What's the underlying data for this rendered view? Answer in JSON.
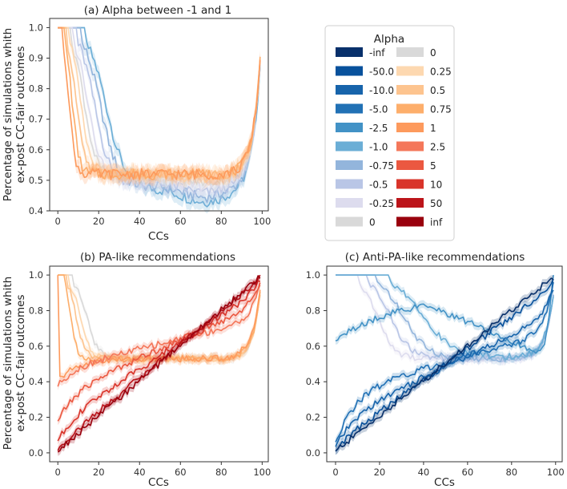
{
  "legend": {
    "title": "Alpha",
    "col1": [
      {
        "label": "-inf",
        "color": "#08306b"
      },
      {
        "label": "-50.0",
        "color": "#08519c"
      },
      {
        "label": "-10.0",
        "color": "#1764ab"
      },
      {
        "label": "-5.0",
        "color": "#2171b5"
      },
      {
        "label": "-2.5",
        "color": "#4292c6"
      },
      {
        "label": "-1.0",
        "color": "#6baed6"
      },
      {
        "label": "-0.75",
        "color": "#93b5dc"
      },
      {
        "label": "-0.5",
        "color": "#b9c6e6"
      },
      {
        "label": "-0.25",
        "color": "#dddcee"
      },
      {
        "label": "0",
        "color": "#d9d9d9"
      }
    ],
    "col2": [
      {
        "label": "0",
        "color": "#d9d9d9"
      },
      {
        "label": "0.25",
        "color": "#fdd8b0"
      },
      {
        "label": "0.5",
        "color": "#fdc48f"
      },
      {
        "label": "0.75",
        "color": "#fdae6b"
      },
      {
        "label": "1",
        "color": "#fd9a5d"
      },
      {
        "label": "2.5",
        "color": "#f4775a"
      },
      {
        "label": "5",
        "color": "#eb5840"
      },
      {
        "label": "10",
        "color": "#d9342a"
      },
      {
        "label": "50",
        "color": "#bc141a"
      },
      {
        "label": "inf",
        "color": "#99000d"
      }
    ]
  },
  "chart_data": [
    {
      "id": "a",
      "type": "line",
      "title": "(a) Alpha between -1 and 1",
      "xlabel": "CCs",
      "ylabel": "Percentage of simulations whith\nex-post CC-fair outcomes",
      "xlim": [
        -4,
        103
      ],
      "ylim": [
        0.4,
        1.03
      ],
      "xticks": [
        "0",
        "20",
        "40",
        "60",
        "80",
        "100"
      ],
      "yticks": [
        "0.4",
        "0.5",
        "0.6",
        "0.7",
        "0.8",
        "0.9",
        "1.0"
      ],
      "series": [
        {
          "name": "-1.0",
          "color": "#6baed6",
          "kind": "decline",
          "start": 13,
          "width": 11,
          "floor": 0.47,
          "dip": 0.04
        },
        {
          "name": "-0.75",
          "color": "#93b5dc",
          "kind": "decline",
          "start": 11,
          "width": 10,
          "floor": 0.48,
          "dip": 0.035
        },
        {
          "name": "-0.5",
          "color": "#b9c6e6",
          "kind": "decline",
          "start": 9,
          "width": 9,
          "floor": 0.49,
          "dip": 0.03
        },
        {
          "name": "-0.25",
          "color": "#dddcee",
          "kind": "decline",
          "start": 7,
          "width": 8,
          "floor": 0.5,
          "dip": 0.02
        },
        {
          "name": "0",
          "color": "#d9d9d9",
          "kind": "decline",
          "start": 6,
          "width": 7,
          "floor": 0.51,
          "dip": 0.015
        },
        {
          "name": "0.25",
          "color": "#fdd8b0",
          "kind": "decline",
          "start": 5,
          "width": 6,
          "floor": 0.52,
          "dip": 0.01
        },
        {
          "name": "0.5",
          "color": "#fdc48f",
          "kind": "decline",
          "start": 4,
          "width": 5,
          "floor": 0.52,
          "dip": 0.0
        },
        {
          "name": "0.75",
          "color": "#fdae6b",
          "kind": "decline",
          "start": 3,
          "width": 4,
          "floor": 0.52,
          "dip": 0.0
        },
        {
          "name": "1",
          "color": "#fd9a5d",
          "kind": "decline",
          "start": 2,
          "width": 3.5,
          "floor": 0.52,
          "dip": 0.0
        }
      ]
    },
    {
      "id": "b",
      "type": "line",
      "title": "(b) PA-like recommendations",
      "xlabel": "CCs",
      "ylabel": "Percentage of simulations whith\nex-post CC-fair outcomes",
      "xlim": [
        -4,
        103
      ],
      "ylim": [
        -0.05,
        1.05
      ],
      "xticks": [
        "0",
        "20",
        "40",
        "60",
        "80",
        "100"
      ],
      "yticks": [
        "0.0",
        "0.2",
        "0.4",
        "0.6",
        "0.8",
        "1.0"
      ],
      "series": [
        {
          "name": "0",
          "color": "#d9d9d9",
          "kind": "decline",
          "start": 7,
          "width": 7,
          "floor": 0.53,
          "dip": 0.0
        },
        {
          "name": "0.25",
          "color": "#fdd8b0",
          "kind": "decline",
          "start": 5,
          "width": 6,
          "floor": 0.53,
          "dip": 0.0
        },
        {
          "name": "0.5",
          "color": "#fdc48f",
          "kind": "decline",
          "start": 4,
          "width": 5,
          "floor": 0.53,
          "dip": 0.0
        },
        {
          "name": "0.75",
          "color": "#fdae6b",
          "kind": "decline",
          "start": 3,
          "width": 3.5,
          "floor": 0.53,
          "dip": 0.0
        },
        {
          "name": "1",
          "color": "#fd9a5d",
          "kind": "drop",
          "y0": 1.0,
          "low": 0.42,
          "plateau": 0.53
        },
        {
          "name": "2.5",
          "color": "#f4775a",
          "kind": "rise",
          "y0": 0.38,
          "p": 0.45,
          "mid": 0.55
        },
        {
          "name": "5",
          "color": "#eb5840",
          "kind": "rise",
          "y0": 0.18,
          "p": 0.62,
          "mid": 0.58
        },
        {
          "name": "10",
          "color": "#d9342a",
          "kind": "rise",
          "y0": 0.07,
          "p": 0.8,
          "mid": 0.6
        },
        {
          "name": "50",
          "color": "#bc141a",
          "kind": "rise",
          "y0": 0.02,
          "p": 0.95,
          "mid": 0.62
        },
        {
          "name": "inf",
          "color": "#99000d",
          "kind": "rise",
          "y0": 0.01,
          "p": 1.0,
          "mid": 0.62
        }
      ]
    },
    {
      "id": "c",
      "type": "line",
      "title": "(c) Anti-PA-like recommendations",
      "xlabel": "CCs",
      "ylabel": "",
      "xlim": [
        -4,
        103
      ],
      "ylim": [
        -0.05,
        1.05
      ],
      "xticks": [
        "0",
        "20",
        "40",
        "60",
        "80",
        "100"
      ],
      "yticks": [
        "0.0",
        "0.2",
        "0.4",
        "0.6",
        "0.8",
        "1.0"
      ],
      "series": [
        {
          "name": "-0.25",
          "color": "#dddcee",
          "kind": "decline",
          "start": 10,
          "width": 9,
          "floor": 0.53,
          "dip": 0.0
        },
        {
          "name": "-0.5",
          "color": "#b9c6e6",
          "kind": "decline",
          "start": 14,
          "width": 11,
          "floor": 0.53,
          "dip": 0.0
        },
        {
          "name": "-0.75",
          "color": "#93b5dc",
          "kind": "decline",
          "start": 18,
          "width": 13,
          "floor": 0.53,
          "dip": 0.0
        },
        {
          "name": "-1.0",
          "color": "#6baed6",
          "kind": "decline",
          "start": 24,
          "width": 16,
          "floor": 0.54,
          "dip": 0.0
        },
        {
          "name": "-2.5",
          "color": "#4292c6",
          "kind": "hump",
          "y0": 0.64,
          "peak": 0.82,
          "peakx": 42,
          "end": 0.56
        },
        {
          "name": "-5.0",
          "color": "#2171b5",
          "kind": "rise",
          "y0": 0.05,
          "p": 0.35,
          "mid": 0.5
        },
        {
          "name": "-10.0",
          "color": "#1764ab",
          "kind": "rise",
          "y0": 0.03,
          "p": 0.6,
          "mid": 0.44
        },
        {
          "name": "-50.0",
          "color": "#08519c",
          "kind": "rise",
          "y0": 0.02,
          "p": 0.9,
          "mid": 0.4
        },
        {
          "name": "-inf",
          "color": "#08306b",
          "kind": "rise",
          "y0": 0.01,
          "p": 1.0,
          "mid": 0.4
        }
      ]
    }
  ]
}
